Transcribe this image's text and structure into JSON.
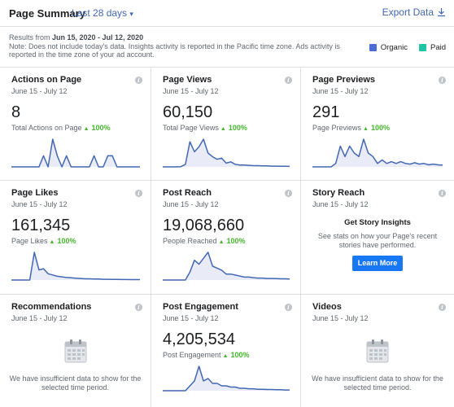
{
  "header": {
    "title": "Page Summary",
    "date_range": "Last 28 days",
    "date_range_chevron": "▾",
    "export_label": "Export Data",
    "export_icon": "download-icon"
  },
  "notes": {
    "results_prefix": "Results from ",
    "results_range": "Jun 15, 2020 - Jul 12, 2020",
    "note": "Note: Does not include today's data. Insights activity is reported in the Pacific time zone. Ads activity is reported in the time zone of your ad account."
  },
  "legend": {
    "organic_label": "Organic",
    "organic_color": "#4a6cd4",
    "paid_label": "Paid",
    "paid_color": "#1fc4a5"
  },
  "colors": {
    "line": "#4267b2",
    "fill": "#e9ecf7",
    "accent": "#4267b2",
    "positive": "#42b72a",
    "button": "#1877f2"
  },
  "cards": {
    "actions": {
      "title": "Actions on Page",
      "date": "June 15 - July 12",
      "value": "8",
      "label": "Total Actions on Page",
      "arrow": "▲",
      "change": "100%",
      "series": [
        0,
        0,
        0,
        0,
        0,
        0,
        0,
        2,
        0,
        5,
        2,
        0,
        2,
        0,
        0,
        0,
        0,
        0,
        2,
        0,
        0,
        2,
        2,
        0,
        0,
        0,
        0,
        0,
        0
      ]
    },
    "views": {
      "title": "Page Views",
      "date": "June 15 - July 12",
      "value": "60,150",
      "label": "Total Page Views",
      "arrow": "▲",
      "change": "100%",
      "series": [
        0,
        0,
        0,
        0,
        0.2,
        2,
        20,
        12,
        16,
        22,
        11,
        8,
        6,
        7,
        3,
        4,
        2,
        1.5,
        1.5,
        1.2,
        1,
        1,
        0.8,
        0.8,
        0.6,
        0.6,
        0.5,
        0.5,
        0.4
      ]
    },
    "previews": {
      "title": "Page Previews",
      "date": "June 15 - July 12",
      "value": "291",
      "label": "Page Previews",
      "arrow": "▲",
      "change": "100%",
      "series": [
        0,
        0,
        0,
        0,
        0,
        1,
        6,
        3,
        6,
        4,
        3,
        8,
        4,
        3,
        1,
        2,
        1,
        1.5,
        1,
        1.5,
        1,
        0.8,
        1.2,
        0.8,
        1,
        0.6,
        0.8,
        0.6,
        0.5
      ]
    },
    "likes": {
      "title": "Page Likes",
      "date": "June 15 - July 12",
      "value": "161,345",
      "label": "Page Likes",
      "arrow": "▲",
      "change": "100%",
      "series": [
        0,
        0,
        0,
        0,
        0,
        22,
        8,
        9,
        5,
        4,
        3,
        2.5,
        2,
        1.8,
        1.5,
        1.2,
        1,
        1,
        0.8,
        0.8,
        0.6,
        0.6,
        0.5,
        0.5,
        0.4,
        0.4,
        0.3,
        0.3,
        0.3
      ]
    },
    "reach": {
      "title": "Post Reach",
      "date": "June 15 - July 12",
      "value": "19,068,660",
      "label": "People Reached",
      "arrow": "▲",
      "change": "100%",
      "series": [
        0,
        0,
        0,
        0,
        0,
        0,
        4,
        10,
        8,
        11,
        14,
        7,
        6,
        5,
        3,
        3,
        2.5,
        2,
        1.5,
        1.5,
        1.2,
        1,
        1,
        0.8,
        0.8,
        0.7,
        0.6,
        0.6,
        0.5
      ]
    },
    "story": {
      "title": "Story Reach",
      "date": "June 15 - July 12",
      "heading": "Get Story Insights",
      "text": "See stats on how your Page's recent stories have performed.",
      "button": "Learn More"
    },
    "recommendations": {
      "title": "Recommendations",
      "date": "June 15 - July 12",
      "empty": "We have insufficient data to show for the selected time period."
    },
    "engagement": {
      "title": "Post Engagement",
      "date": "June 15 - July 12",
      "value": "4,205,534",
      "label": "Post Engagement",
      "arrow": "▲",
      "change": "100%",
      "series": [
        0,
        0,
        0,
        0,
        0,
        0,
        2,
        4,
        10,
        4,
        5,
        3,
        3,
        2,
        2,
        1.5,
        1.5,
        1,
        1,
        0.8,
        0.8,
        0.6,
        0.6,
        0.5,
        0.5,
        0.4,
        0.4,
        0.3,
        0.3
      ]
    },
    "videos": {
      "title": "Videos",
      "date": "June 15 - July 12",
      "empty": "We have insufficient data to show for the selected time period."
    }
  }
}
